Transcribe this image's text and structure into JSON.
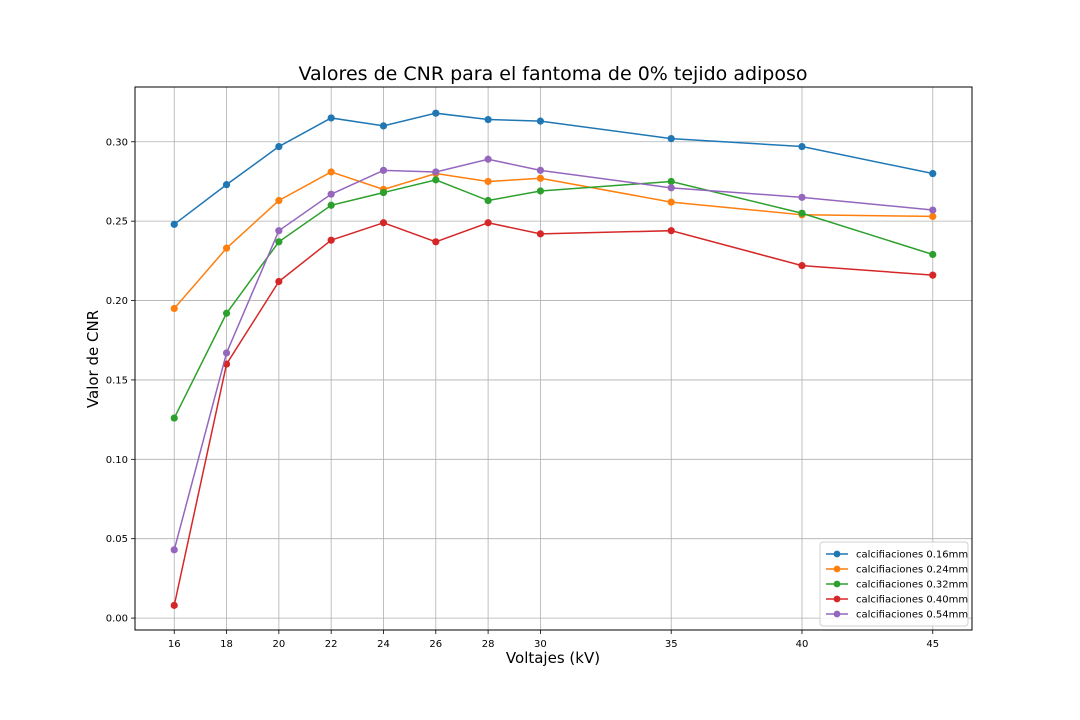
{
  "chart_data": {
    "type": "line",
    "title": "Valores de CNR para el fantoma de 0% tejido adiposo",
    "xlabel": "Voltajes (kV)",
    "ylabel": "Valor de CNR",
    "x": [
      16,
      18,
      20,
      22,
      24,
      26,
      28,
      30,
      35,
      40,
      45
    ],
    "x_tick_labels": [
      "16",
      "18",
      "20",
      "22",
      "24",
      "26",
      "28",
      "30",
      "35",
      "40",
      "45"
    ],
    "y_ticks": [
      0.0,
      0.05,
      0.1,
      0.15,
      0.2,
      0.25,
      0.3
    ],
    "y_tick_labels": [
      "0.00",
      "0.05",
      "0.10",
      "0.15",
      "0.20",
      "0.25",
      "0.30"
    ],
    "xlim": [
      14.5,
      46.5
    ],
    "ylim": [
      -0.0075,
      0.3345
    ],
    "grid": true,
    "legend_position": "lower-right",
    "series": [
      {
        "name": "calcifiaciones 0.16mm",
        "color": "#1f77b4",
        "values": [
          0.248,
          0.273,
          0.297,
          0.315,
          0.31,
          0.318,
          0.314,
          0.313,
          0.302,
          0.297,
          0.28
        ]
      },
      {
        "name": "calcifiaciones 0.24mm",
        "color": "#ff7f0e",
        "values": [
          0.195,
          0.233,
          0.263,
          0.281,
          0.27,
          0.28,
          0.275,
          0.277,
          0.262,
          0.254,
          0.253
        ]
      },
      {
        "name": "calcifiaciones 0.32mm",
        "color": "#2ca02c",
        "values": [
          0.126,
          0.192,
          0.237,
          0.26,
          0.268,
          0.276,
          0.263,
          0.269,
          0.275,
          0.255,
          0.229
        ]
      },
      {
        "name": "calcifiaciones 0.40mm",
        "color": "#d62728",
        "values": [
          0.008,
          0.16,
          0.212,
          0.238,
          0.249,
          0.237,
          0.249,
          0.242,
          0.244,
          0.222,
          0.216
        ]
      },
      {
        "name": "calcifiaciones 0.54mm",
        "color": "#9467bd",
        "values": [
          0.043,
          0.167,
          0.244,
          0.267,
          0.282,
          0.281,
          0.289,
          0.282,
          0.271,
          0.265,
          0.257
        ]
      }
    ]
  }
}
